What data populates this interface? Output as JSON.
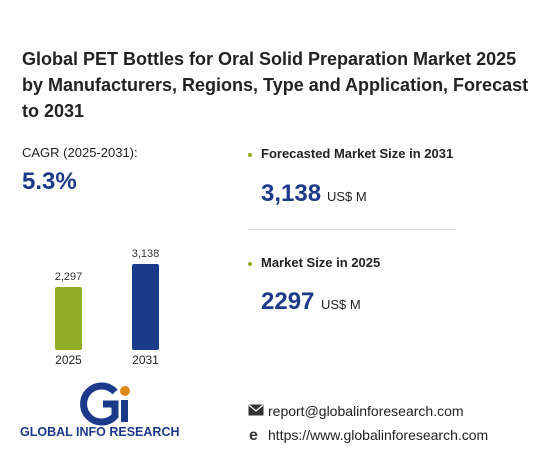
{
  "title": "Global PET Bottles for Oral Solid Preparation Market 2025 by Manufacturers, Regions, Type and Application, Forecast to 2031",
  "cagr": {
    "label": "CAGR (2025-2031):",
    "value": "5.3%"
  },
  "chart_data": {
    "type": "bar",
    "categories": [
      "2025",
      "2031"
    ],
    "values": [
      2297,
      3138
    ],
    "value_labels": [
      "2,297",
      "3,138"
    ],
    "colors": [
      "#8fad25",
      "#1c3a8a"
    ]
  },
  "forecast": {
    "label": "Forecasted Market Size in 2031",
    "value": "3,138",
    "unit": "US$ M"
  },
  "current": {
    "label": "Market Size in 2025",
    "value": "2297",
    "unit": "US$ M"
  },
  "logo": {
    "text": "GLOBAL INFO RESEARCH"
  },
  "contact": {
    "email": "report@globalinforesearch.com",
    "website": "https://www.globalinforesearch.com"
  }
}
